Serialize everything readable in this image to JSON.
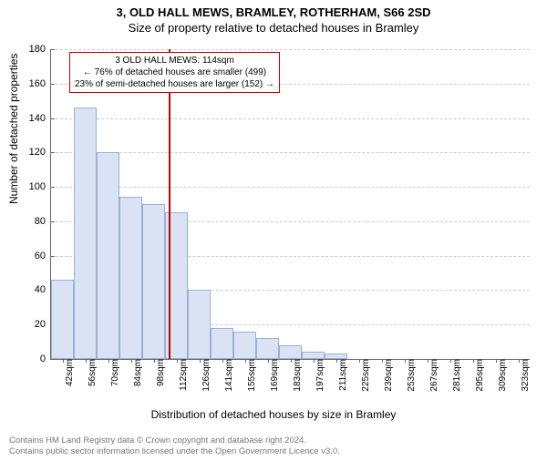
{
  "titles": {
    "main": "3, OLD HALL MEWS, BRAMLEY, ROTHERHAM, S66 2SD",
    "sub": "Size of property relative to detached houses in Bramley"
  },
  "y_axis": {
    "label": "Number of detached properties",
    "ticks": [
      0,
      20,
      40,
      60,
      80,
      100,
      120,
      140,
      160,
      180
    ],
    "lim": [
      0,
      180
    ]
  },
  "x_axis": {
    "label": "Distribution of detached houses by size in Bramley",
    "categories": [
      "42sqm",
      "56sqm",
      "70sqm",
      "84sqm",
      "98sqm",
      "112sqm",
      "126sqm",
      "141sqm",
      "155sqm",
      "169sqm",
      "183sqm",
      "197sqm",
      "211sqm",
      "225sqm",
      "239sqm",
      "253sqm",
      "267sqm",
      "281sqm",
      "295sqm",
      "309sqm",
      "323sqm"
    ]
  },
  "histogram": {
    "values": [
      46,
      146,
      120,
      94,
      90,
      85,
      40,
      18,
      16,
      12,
      8,
      4,
      3,
      0,
      0,
      0,
      0,
      0,
      0,
      0,
      0
    ],
    "bar_fill": "#dae3f3",
    "bar_border": "#9ab0d8"
  },
  "reference": {
    "position_index": 5.15,
    "line_color": "#c00000",
    "box_lines": {
      "l1": "3 OLD HALL MEWS: 114sqm",
      "l2": "← 76% of detached houses are smaller (499)",
      "l3": "23% of semi-detached houses are larger (152) →"
    }
  },
  "footer": {
    "l1": "Contains HM Land Registry data © Crown copyright and database right 2024.",
    "l2": "Contains public sector information licensed under the Open Government Licence v3.0."
  },
  "style": {
    "grid_color": "#cccccc",
    "axis_color": "#666666",
    "bg": "#ffffff",
    "title_fontsize": 13,
    "label_fontsize": 12,
    "tick_fontsize": 11
  }
}
